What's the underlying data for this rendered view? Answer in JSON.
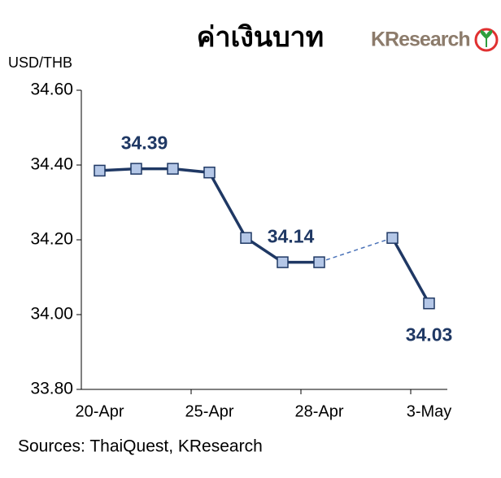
{
  "chart_data": {
    "type": "line",
    "title": "ค่าเงินบาท",
    "logo": "KResearch",
    "y_label": "USD/THB",
    "source": "Sources: ThaiQuest, KResearch",
    "categories": [
      "20-Apr",
      null,
      null,
      "25-Apr",
      null,
      null,
      "28-Apr",
      null,
      null,
      "3-May"
    ],
    "series": [
      {
        "color": "#1f3864",
        "marker_fill": "#b4c7e7",
        "values": [
          34.385,
          34.39,
          34.39,
          34.38,
          34.205,
          34.14,
          34.14,
          null,
          34.205,
          34.03
        ],
        "value_labels": [
          null,
          null,
          "34.39",
          null,
          null,
          null,
          "34.14",
          null,
          null,
          "34.03"
        ]
      }
    ],
    "ylim": [
      33.8,
      34.6
    ],
    "yticks": [
      {
        "value": 33.8,
        "label": "33.80"
      },
      {
        "value": 34.0,
        "label": "34.00"
      },
      {
        "value": 34.2,
        "label": "34.20"
      },
      {
        "value": 34.4,
        "label": "34.40"
      },
      {
        "value": 34.6,
        "label": "34.60"
      }
    ],
    "grid": false
  }
}
